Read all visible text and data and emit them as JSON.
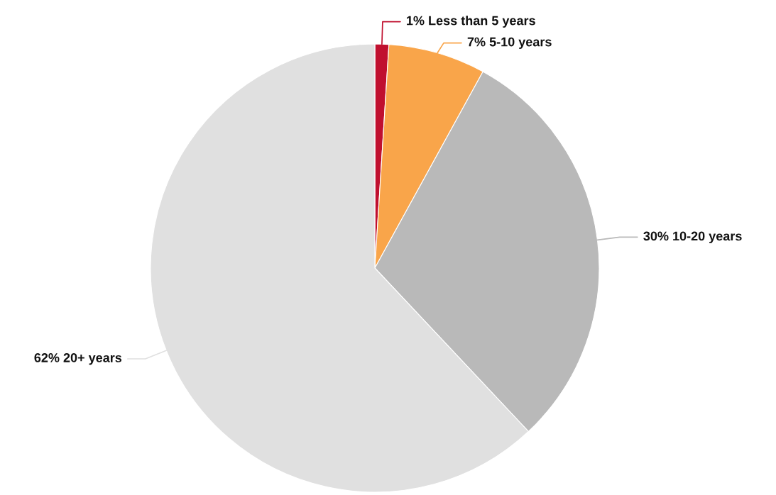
{
  "chart_data": {
    "type": "pie",
    "categories": [
      "Less than 5 years",
      "5-10 years",
      "10-20 years",
      "20+ years"
    ],
    "values": [
      1,
      7,
      30,
      62
    ],
    "value_labels": [
      "1%",
      "7%",
      "30%",
      "62%"
    ],
    "colors": [
      "#c0102f",
      "#f9a54a",
      "#b9b9b9",
      "#e0e0e0"
    ]
  }
}
